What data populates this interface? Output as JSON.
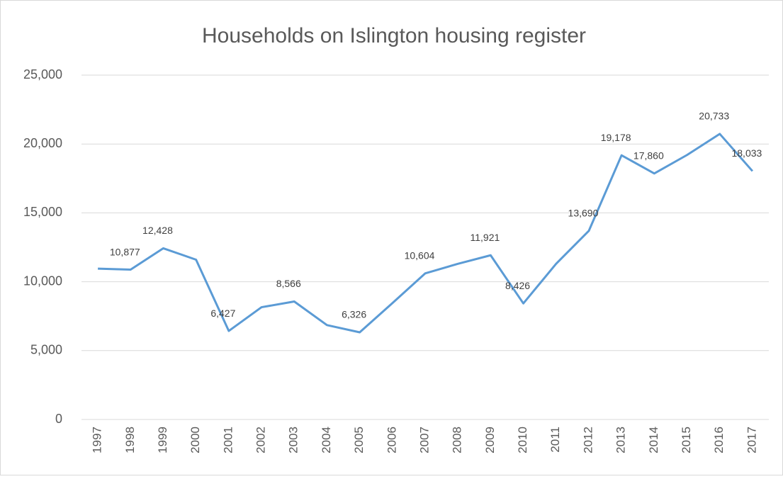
{
  "chart_data": {
    "type": "line",
    "title": "Households on Islington housing register",
    "categories": [
      "1997",
      "1998",
      "1999",
      "2000",
      "2001",
      "2002",
      "2003",
      "2004",
      "2005",
      "2006",
      "2007",
      "2008",
      "2009",
      "2010",
      "2011",
      "2012",
      "2013",
      "2014",
      "2015",
      "2016",
      "2017"
    ],
    "values": [
      10950,
      10877,
      12428,
      11600,
      6427,
      8150,
      8566,
      6850,
      6326,
      8450,
      10604,
      11300,
      11921,
      8426,
      11300,
      13690,
      19178,
      17860,
      19200,
      20733,
      18033
    ],
    "value_labels": [
      null,
      "10,877",
      "12,428",
      null,
      "6,427",
      null,
      "8,566",
      null,
      "6,326",
      null,
      "10,604",
      null,
      "11,921",
      "8,426",
      null,
      "13,690",
      "19,178",
      "17,860",
      null,
      "20,733",
      "18,033"
    ],
    "color": "#5b9bd5",
    "ylim": [
      0,
      25000
    ],
    "yticks": [
      0,
      {
        "value": 5000,
        "label": "5,000"
      },
      {
        "value": 10000,
        "label": "10,000"
      },
      {
        "value": 15000,
        "label": "15,000"
      },
      {
        "value": 20000,
        "label": "20,000"
      },
      {
        "value": 25000,
        "label": "25,000"
      }
    ],
    "grid": true
  }
}
